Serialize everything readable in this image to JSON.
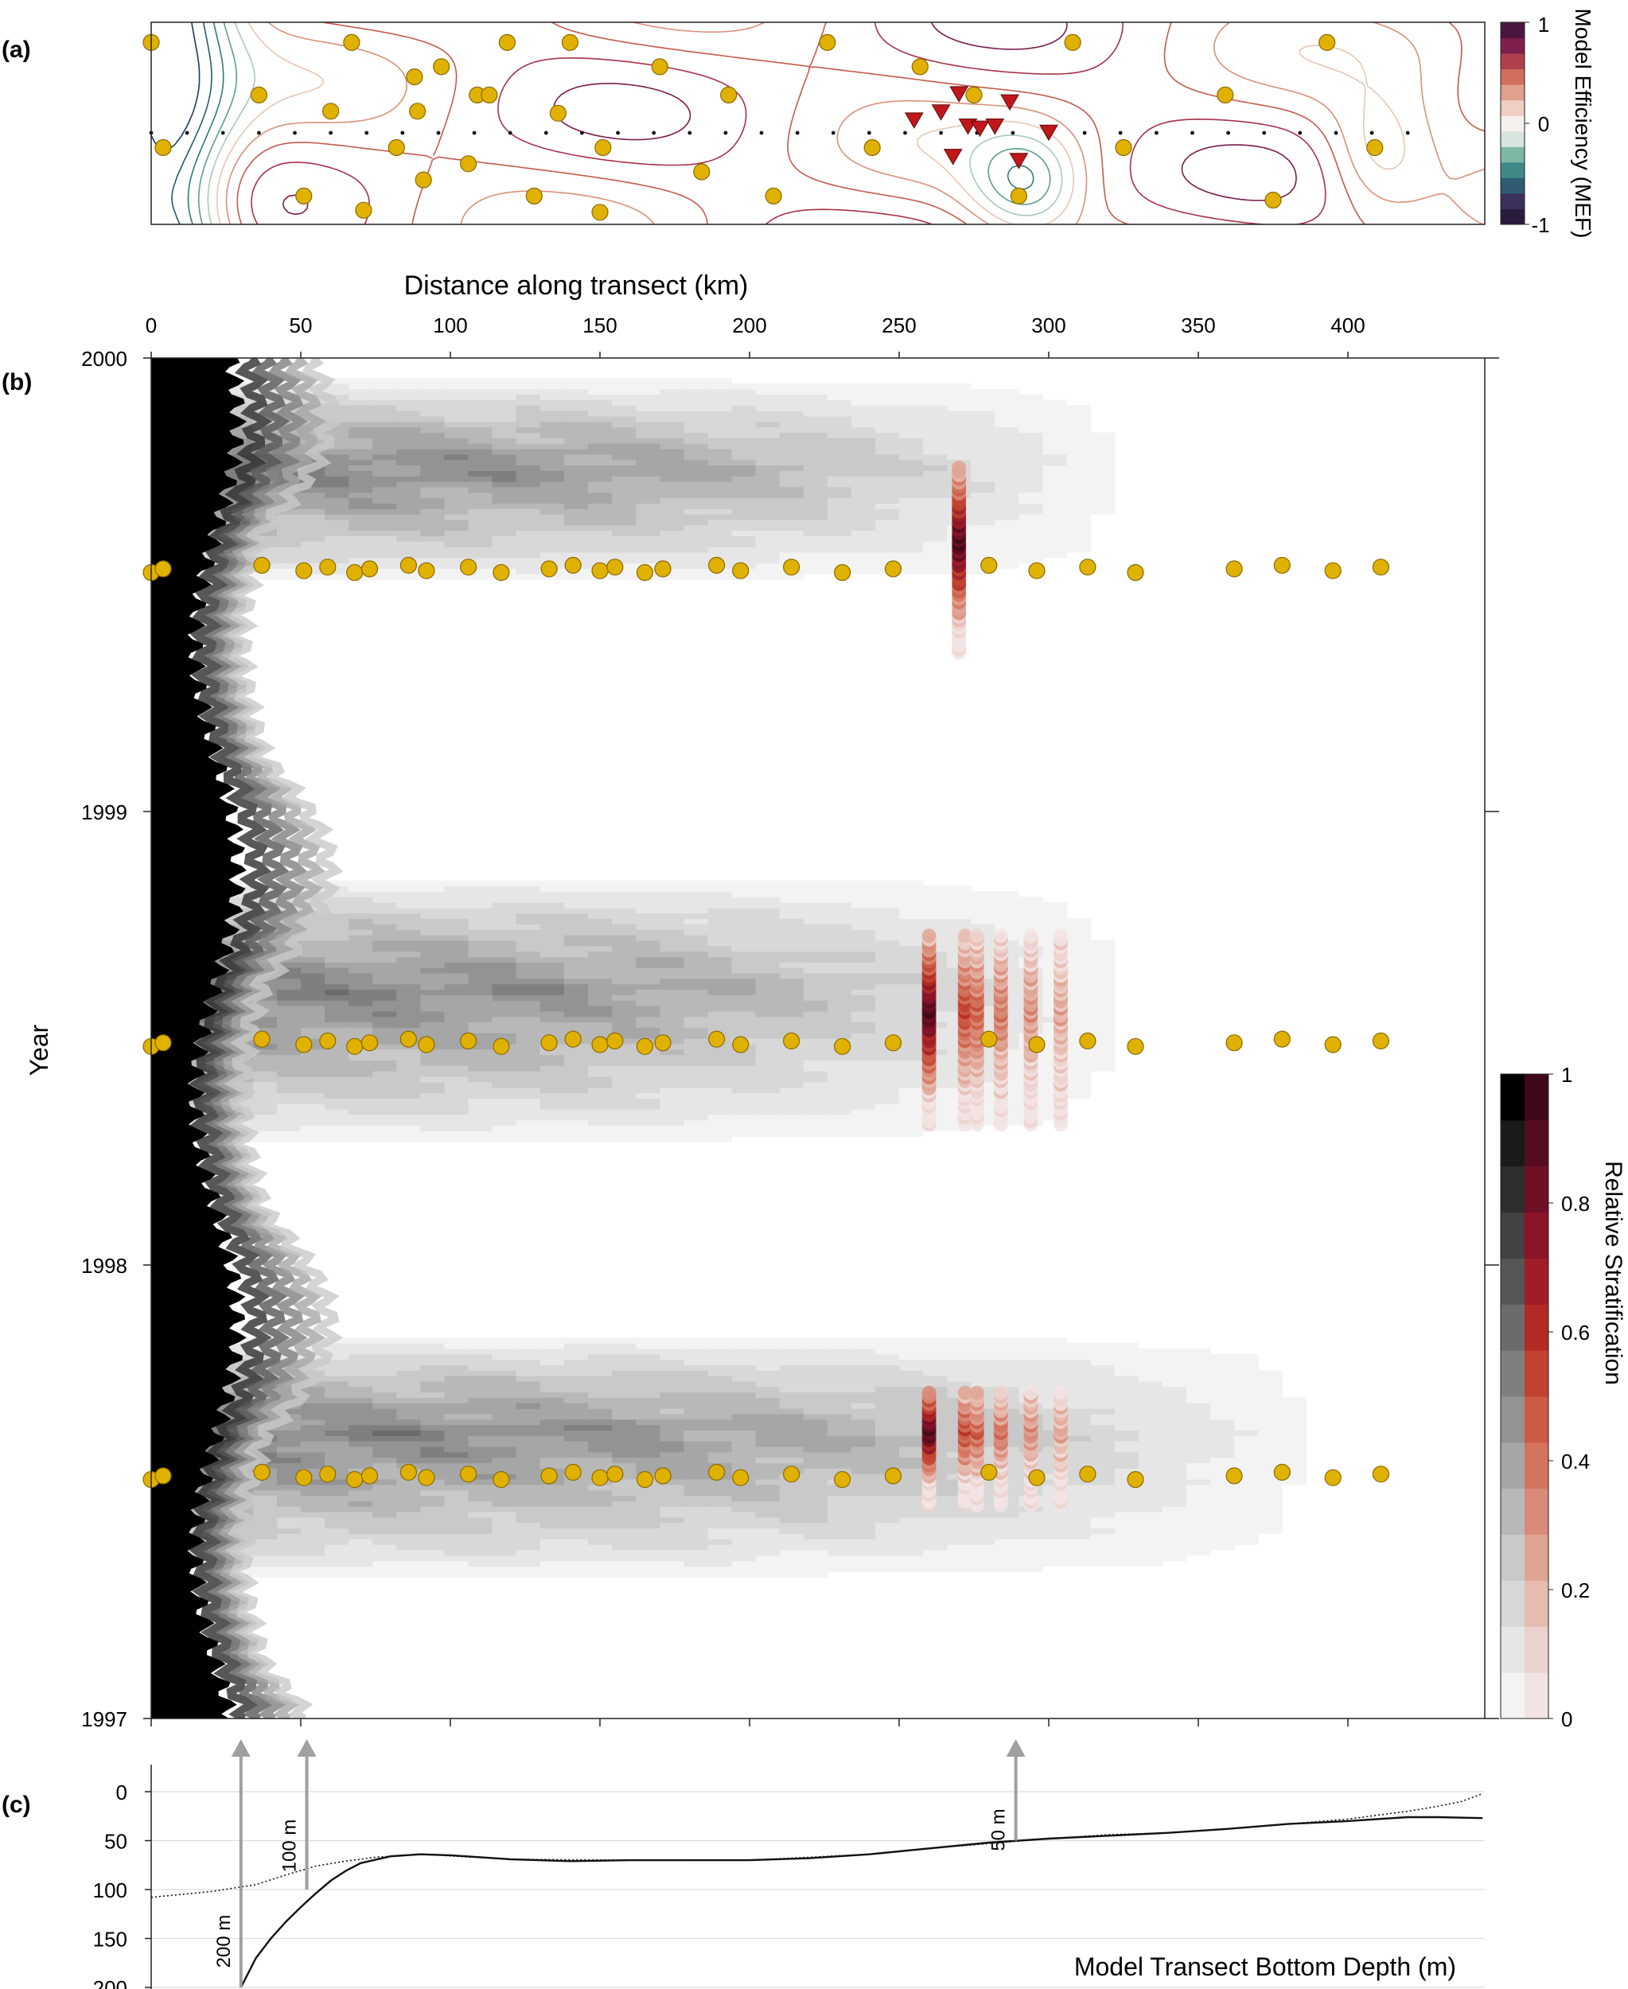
{
  "panel_labels": {
    "a": "(a)",
    "b": "(b)",
    "c": "(c)"
  },
  "colors": {
    "accent_station": "#e0b100",
    "station_edge": "#8a6a00",
    "mooring_marker": "#c0171b",
    "strat_gray_ramp": [
      "#ffffff",
      "#f3f3f3",
      "#e6e6e6",
      "#d8d8d8",
      "#c9c9c9",
      "#b8b8b8",
      "#a6a6a6",
      "#939393",
      "#7f7f7f",
      "#6b6b6b",
      "#565656",
      "#424242",
      "#2e2e2e",
      "#1a1a1a",
      "#000000"
    ],
    "strat_red_ramp": [
      "#f2e4e4",
      "#ecd2cc",
      "#e6bbb0",
      "#e0a494",
      "#d98b78",
      "#d4735e",
      "#cc5a45",
      "#c1432f",
      "#b32a24",
      "#a01d27",
      "#8a1428",
      "#701026",
      "#560c20",
      "#3f081a"
    ]
  },
  "chart_data": [
    {
      "id": "a",
      "type": "contour",
      "colorbar": {
        "label": "Model Efficiency (MEF)",
        "ticks": [
          "1",
          "0",
          "-1"
        ],
        "range": [
          -1,
          1
        ]
      },
      "transect_dots": {
        "x_km": [
          0,
          12,
          24,
          36,
          48,
          60,
          72,
          84,
          96,
          108,
          120,
          132,
          144,
          156,
          168,
          180,
          192,
          204,
          216,
          228,
          240,
          252,
          264,
          276,
          288,
          300,
          312,
          324,
          336,
          348,
          360,
          372,
          384,
          396,
          408,
          420
        ]
      },
      "stations": [
        [
          0,
          0.9
        ],
        [
          4,
          0.38
        ],
        [
          36,
          0.64
        ],
        [
          51,
          0.14
        ],
        [
          60,
          0.56
        ],
        [
          67,
          0.9
        ],
        [
          71,
          0.07
        ],
        [
          82,
          0.38
        ],
        [
          88,
          0.73
        ],
        [
          89,
          0.56
        ],
        [
          91,
          0.22
        ],
        [
          97,
          0.78
        ],
        [
          106,
          0.3
        ],
        [
          109,
          0.64
        ],
        [
          113,
          0.64
        ],
        [
          119,
          0.9
        ],
        [
          128,
          0.14
        ],
        [
          136,
          0.55
        ],
        [
          140,
          0.9
        ],
        [
          150,
          0.06
        ],
        [
          151,
          0.38
        ],
        [
          170,
          0.78
        ],
        [
          184,
          0.26
        ],
        [
          193,
          0.64
        ],
        [
          208,
          0.14
        ],
        [
          226,
          0.9
        ],
        [
          241,
          0.38
        ],
        [
          257,
          0.78
        ],
        [
          275,
          0.64
        ],
        [
          290,
          0.14
        ],
        [
          308,
          0.9
        ],
        [
          325,
          0.38
        ],
        [
          359,
          0.64
        ],
        [
          375,
          0.12
        ],
        [
          393,
          0.9
        ],
        [
          409,
          0.38
        ]
      ],
      "moorings": [
        [
          255,
          0.52
        ],
        [
          264,
          0.56
        ],
        [
          270,
          0.65
        ],
        [
          273,
          0.49
        ],
        [
          277,
          0.48
        ],
        [
          282,
          0.49
        ],
        [
          287,
          0.61
        ],
        [
          300,
          0.46
        ],
        [
          268,
          0.34
        ],
        [
          290,
          0.32
        ]
      ]
    },
    {
      "id": "b",
      "type": "heatmap",
      "xlabel": "Distance along transect (km)",
      "ylabel": "Year",
      "xlim": [
        0,
        450
      ],
      "xticks": [
        0,
        50,
        100,
        150,
        200,
        250,
        300,
        350,
        400
      ],
      "ylim": [
        1997,
        2000
      ],
      "yticks": [
        "1997",
        "1998",
        "1999",
        "2000"
      ],
      "colorbar": {
        "label": "Relative Stratification",
        "ticks": [
          "0",
          "0.2",
          "0.4",
          "0.6",
          "0.8",
          "1"
        ],
        "range": [
          0,
          1
        ]
      },
      "survey_stations_x_km": [
        0,
        4,
        37,
        51,
        59,
        68,
        73,
        86,
        92,
        106,
        117,
        133,
        141,
        150,
        155,
        165,
        171,
        189,
        197,
        214,
        231,
        248,
        280,
        296,
        313,
        329,
        362,
        378,
        395,
        411
      ],
      "survey_times": [
        1997.535,
        1998.49,
        1999.535
      ],
      "mooring_x_km": [
        260,
        272,
        275,
        284,
        294,
        304
      ]
    },
    {
      "id": "c",
      "type": "line",
      "title": "Model Transect Bottom Depth (m)",
      "ylim": [
        0,
        200
      ],
      "yticks": [
        "0",
        "50",
        "100",
        "150",
        "200"
      ],
      "depth_marks": [
        {
          "label": "200 m",
          "x_km": 30
        },
        {
          "label": "100 m",
          "x_km": 52
        },
        {
          "label": "50 m",
          "x_km": 289
        }
      ],
      "series": [
        {
          "style": "solid",
          "x": [
            30,
            35,
            40,
            45,
            50,
            55,
            60,
            65,
            70,
            80,
            90,
            100,
            120,
            140,
            160,
            180,
            200,
            220,
            240,
            260,
            280,
            300,
            320,
            340,
            360,
            380,
            400,
            420,
            430,
            445
          ],
          "y": [
            200,
            170,
            150,
            133,
            118,
            104,
            91,
            81,
            73,
            66,
            64,
            65,
            69,
            71,
            70,
            70,
            70,
            68,
            64,
            58,
            52,
            48,
            45,
            42,
            38,
            33,
            30,
            26,
            26,
            27
          ]
        },
        {
          "style": "dotted",
          "x": [
            0,
            20,
            35,
            45,
            55,
            65,
            75,
            90,
            120,
            160,
            200,
            240,
            260,
            280,
            300,
            320,
            340,
            360,
            380,
            400,
            420,
            430,
            438,
            445
          ],
          "y": [
            108,
            102,
            95,
            85,
            76,
            71,
            67,
            64,
            69,
            70,
            70,
            64,
            58,
            53,
            48,
            44,
            42,
            38,
            33,
            28,
            20,
            15,
            10,
            2
          ]
        }
      ]
    }
  ]
}
